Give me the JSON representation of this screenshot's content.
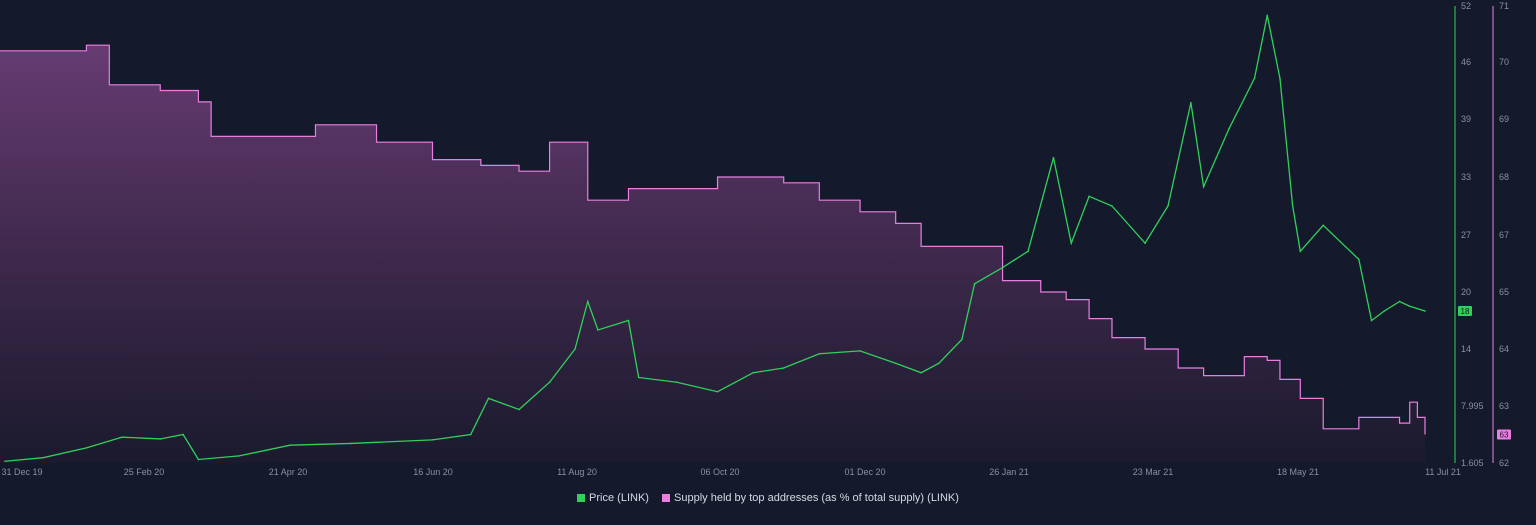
{
  "chart_data": {
    "type": "line",
    "x_dates": [
      "31 Dec 19",
      "25 Feb 20",
      "21 Apr 20",
      "16 Jun 20",
      "11 Aug 20",
      "06 Oct 20",
      "01 Dec 20",
      "26 Jan 21",
      "23 Mar 21",
      "18 May 21",
      "11 Jul 21"
    ],
    "legend_position": "bottom-center",
    "grid": false,
    "axes": {
      "price": {
        "side": "right",
        "ticks": [
          "52",
          "46",
          "39",
          "33",
          "27",
          "20",
          "14",
          "7.995",
          "1.605"
        ],
        "ylim": [
          1.605,
          52
        ]
      },
      "supply": {
        "side": "right",
        "ticks": [
          "71",
          "70",
          "69",
          "68",
          "67",
          "65",
          "64",
          "63",
          "62"
        ],
        "ylim": [
          62,
          71
        ]
      }
    },
    "series": [
      {
        "name": "Price (LINK)",
        "axis": "price",
        "color": "#2fd15a",
        "points": [
          [
            "31 Dec 19",
            1.8
          ],
          [
            "15 Jan 20",
            2.2
          ],
          [
            "01 Feb 20",
            3.3
          ],
          [
            "15 Feb 20",
            4.5
          ],
          [
            "01 Mar 20",
            4.3
          ],
          [
            "10 Mar 20",
            4.8
          ],
          [
            "16 Mar 20",
            2.0
          ],
          [
            "01 Apr 20",
            2.4
          ],
          [
            "21 Apr 20",
            3.6
          ],
          [
            "15 May 20",
            3.8
          ],
          [
            "16 Jun 20",
            4.2
          ],
          [
            "01 Jul 20",
            4.8
          ],
          [
            "08 Jul 20",
            8.8
          ],
          [
            "20 Jul 20",
            7.6
          ],
          [
            "01 Aug 20",
            10.5
          ],
          [
            "11 Aug 20",
            14.0
          ],
          [
            "16 Aug 20",
            19.0
          ],
          [
            "20 Aug 20",
            16.0
          ],
          [
            "01 Sep 20",
            17.0
          ],
          [
            "05 Sep 20",
            11.0
          ],
          [
            "20 Sep 20",
            10.5
          ],
          [
            "06 Oct 20",
            9.5
          ],
          [
            "20 Oct 20",
            11.5
          ],
          [
            "01 Nov 20",
            12.0
          ],
          [
            "15 Nov 20",
            13.5
          ],
          [
            "01 Dec 20",
            13.8
          ],
          [
            "15 Dec 20",
            12.5
          ],
          [
            "25 Dec 20",
            11.5
          ],
          [
            "01 Jan 21",
            12.5
          ],
          [
            "10 Jan 21",
            15.0
          ],
          [
            "15 Jan 21",
            21.0
          ],
          [
            "26 Jan 21",
            23.0
          ],
          [
            "05 Feb 21",
            25.0
          ],
          [
            "15 Feb 21",
            35.0
          ],
          [
            "22 Feb 21",
            26.0
          ],
          [
            "01 Mar 21",
            31.0
          ],
          [
            "10 Mar 21",
            30.0
          ],
          [
            "23 Mar 21",
            26.0
          ],
          [
            "01 Apr 21",
            30.0
          ],
          [
            "10 Apr 21",
            41.0
          ],
          [
            "15 Apr 21",
            32.0
          ],
          [
            "20 Apr 21",
            35.0
          ],
          [
            "25 Apr 21",
            38.0
          ],
          [
            "05 May 21",
            44.0
          ],
          [
            "10 May 21",
            51.0
          ],
          [
            "15 May 21",
            44.0
          ],
          [
            "20 May 21",
            30.0
          ],
          [
            "23 May 21",
            25.0
          ],
          [
            "01 Jun 21",
            28.0
          ],
          [
            "15 Jun 21",
            24.0
          ],
          [
            "20 Jun 21",
            17.0
          ],
          [
            "25 Jun 21",
            18.0
          ],
          [
            "01 Jul 21",
            19.0
          ],
          [
            "05 Jul 21",
            18.5
          ],
          [
            "11 Jul 21",
            18.0
          ]
        ],
        "last_value_badge": "18"
      },
      {
        "name": "Supply held by top addresses (as % of total supply) (LINK)",
        "axis": "supply",
        "color": "#e87fe0",
        "points": [
          [
            "31 Dec 19",
            70.2
          ],
          [
            "15 Jan 20",
            70.2
          ],
          [
            "01 Feb 20",
            70.3
          ],
          [
            "10 Feb 20",
            69.6
          ],
          [
            "01 Mar 20",
            69.5
          ],
          [
            "16 Mar 20",
            69.3
          ],
          [
            "21 Mar 20",
            68.7
          ],
          [
            "21 Apr 20",
            68.7
          ],
          [
            "01 May 20",
            68.9
          ],
          [
            "20 May 20",
            68.9
          ],
          [
            "25 May 20",
            68.6
          ],
          [
            "16 Jun 20",
            68.3
          ],
          [
            "05 Jul 20",
            68.2
          ],
          [
            "20 Jul 20",
            68.1
          ],
          [
            "01 Aug 20",
            68.6
          ],
          [
            "11 Aug 20",
            68.6
          ],
          [
            "16 Aug 20",
            67.6
          ],
          [
            "01 Sep 20",
            67.8
          ],
          [
            "06 Oct 20",
            68.0
          ],
          [
            "01 Nov 20",
            67.9
          ],
          [
            "15 Nov 20",
            67.6
          ],
          [
            "01 Dec 20",
            67.4
          ],
          [
            "15 Dec 20",
            67.2
          ],
          [
            "25 Dec 20",
            66.8
          ],
          [
            "26 Jan 21",
            66.2
          ],
          [
            "10 Feb 21",
            66.0
          ],
          [
            "20 Feb 21",
            65.8
          ],
          [
            "01 Mar 21",
            65.3
          ],
          [
            "10 Mar 21",
            64.8
          ],
          [
            "23 Mar 21",
            64.5
          ],
          [
            "05 Apr 21",
            64.0
          ],
          [
            "15 Apr 21",
            63.8
          ],
          [
            "01 May 21",
            64.3
          ],
          [
            "10 May 21",
            64.2
          ],
          [
            "15 May 21",
            63.7
          ],
          [
            "23 May 21",
            63.2
          ],
          [
            "01 Jun 21",
            62.6
          ],
          [
            "15 Jun 21",
            62.8
          ],
          [
            "01 Jul 21",
            62.7
          ],
          [
            "05 Jul 21",
            63.1
          ],
          [
            "08 Jul 21",
            62.8
          ],
          [
            "11 Jul 21",
            62.5
          ]
        ],
        "last_value_badge": "63"
      }
    ]
  }
}
